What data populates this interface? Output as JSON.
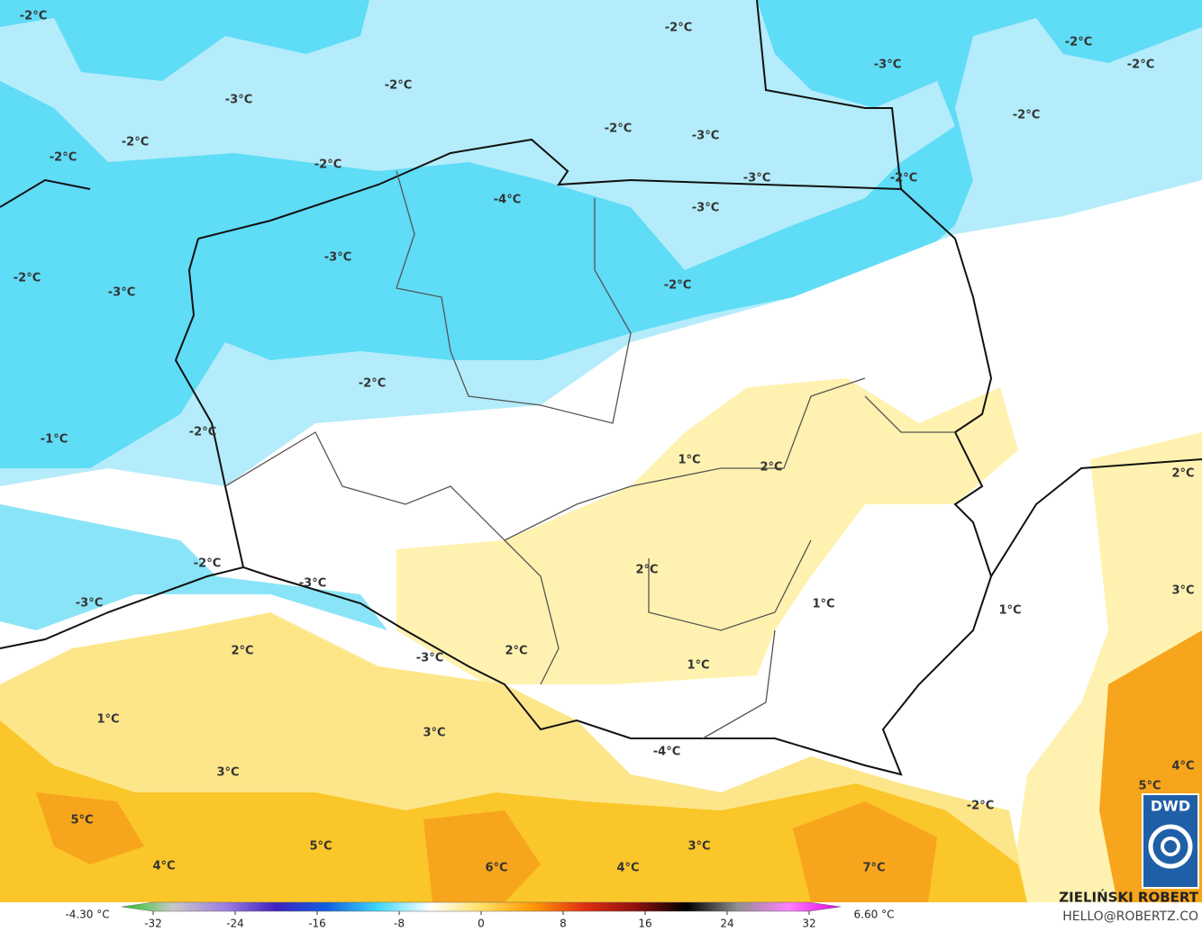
{
  "map": {
    "labels": [
      "-2°C",
      "-2°C",
      "-2°C",
      "-3°C",
      "-2°C",
      "-2°C",
      "-3°C",
      "-2°C",
      "-2°C",
      "-2°C",
      "-3°C",
      "-2°C",
      "-2°C",
      "-3°C",
      "-2°C",
      "-4°C",
      "-3°C",
      "-3°C",
      "-2°C",
      "-3°C",
      "-2°C",
      "-2°C",
      "-1°C",
      "-2°C",
      "1°C",
      "2°C",
      "2°C",
      "-2°C",
      "-3°C",
      "-3°C",
      "2°C",
      "1°C",
      "3°C",
      "1°C",
      "2°C",
      "2°C",
      "-3°C",
      "1°C",
      "1°C",
      "3°C",
      "-4°C",
      "3°C",
      "4°C",
      "5°C",
      "-2°C",
      "5°C",
      "5°C",
      "3°C",
      "4°C",
      "6°C",
      "4°C",
      "7°C"
    ],
    "logo": "DWD"
  },
  "colorbar": {
    "min_label": "-4.30 °C",
    "max_label": "6.60 °C",
    "range": [
      -32,
      32
    ],
    "ticks": [
      -32,
      -24,
      -16,
      -8,
      0,
      8,
      16,
      24,
      32
    ],
    "colors": [
      "#22c422",
      "#c8c8c8",
      "#a080e0",
      "#4020c0",
      "#1060e0",
      "#40d8f8",
      "#ffffff",
      "#ffe066",
      "#ff9900",
      "#e03010",
      "#901010",
      "#000000",
      "#909090",
      "#ff80ff",
      "#e000e0"
    ]
  },
  "footer": {
    "author": "ZIELIŃSKI ROBERT",
    "email": "HELLO@ROBERTZ.CO"
  }
}
